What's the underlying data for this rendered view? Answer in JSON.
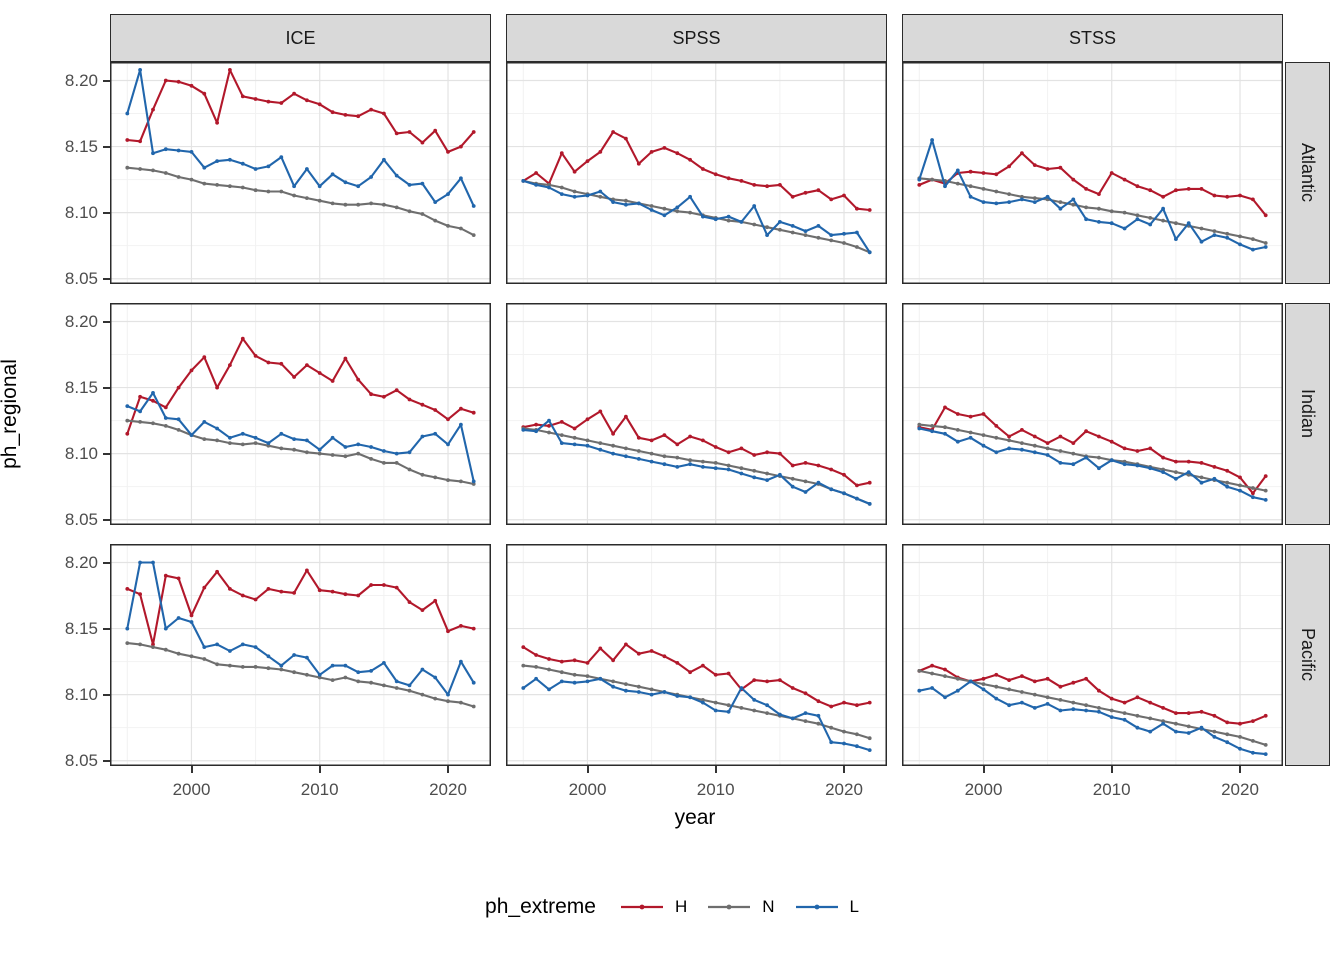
{
  "chart_data": {
    "type": "line",
    "title": "",
    "xlabel": "year",
    "ylabel": "ph_regional",
    "legend_title": "ph_extreme",
    "legend_position": "bottom",
    "grid": {
      "major": "#E3E3E3",
      "minor": "#F2F2F2",
      "on": true
    },
    "panel_border": "#2B2B2B",
    "strip_bg": "#D9D9D9",
    "facet_cols": [
      "ICE",
      "SPSS",
      "STSS"
    ],
    "facet_rows": [
      "Atlantic",
      "Indian",
      "Pacific"
    ],
    "x_ticks": [
      2000,
      2010,
      2020
    ],
    "x_minor": [
      1995,
      2005,
      2015
    ],
    "x_tick_labels": [
      "2000",
      "2010",
      "2020"
    ],
    "y_ticks": [
      8.2,
      8.15,
      8.1,
      8.05
    ],
    "y_tick_labels": [
      "8.20",
      "8.15",
      "8.10",
      "8.05"
    ],
    "y_minor": [
      8.175,
      8.125,
      8.075
    ],
    "x_range": [
      1993.65,
      2023.35
    ],
    "y_range": [
      8.046,
      8.214
    ],
    "years": [
      1995,
      1996,
      1997,
      1998,
      1999,
      2000,
      2001,
      2002,
      2003,
      2004,
      2005,
      2006,
      2007,
      2008,
      2009,
      2010,
      2011,
      2012,
      2013,
      2014,
      2015,
      2016,
      2017,
      2018,
      2019,
      2020,
      2021,
      2022
    ],
    "series": [
      {
        "name": "H",
        "color": "#B2182B"
      },
      {
        "name": "N",
        "color": "#6E6E6E"
      },
      {
        "name": "L",
        "color": "#2166AC"
      }
    ],
    "panels": [
      {
        "col": "ICE",
        "row": "Atlantic",
        "values": {
          "H": [
            8.155,
            8.154,
            8.178,
            8.2,
            8.199,
            8.196,
            8.19,
            8.168,
            8.208,
            8.188,
            8.186,
            8.184,
            8.183,
            8.19,
            8.185,
            8.182,
            8.176,
            8.174,
            8.173,
            8.178,
            8.175,
            8.16,
            8.161,
            8.153,
            8.162,
            8.146,
            8.15,
            8.161
          ],
          "N": [
            8.134,
            8.133,
            8.132,
            8.13,
            8.127,
            8.125,
            8.122,
            8.121,
            8.12,
            8.119,
            8.117,
            8.116,
            8.116,
            8.113,
            8.111,
            8.109,
            8.107,
            8.106,
            8.106,
            8.107,
            8.106,
            8.104,
            8.101,
            8.099,
            8.094,
            8.09,
            8.088,
            8.083
          ],
          "L": [
            8.175,
            8.208,
            8.145,
            8.148,
            8.147,
            8.146,
            8.134,
            8.139,
            8.14,
            8.137,
            8.133,
            8.135,
            8.142,
            8.12,
            8.133,
            8.12,
            8.129,
            8.123,
            8.12,
            8.127,
            8.14,
            8.128,
            8.121,
            8.122,
            8.108,
            8.114,
            8.126,
            8.105
          ]
        }
      },
      {
        "col": "SPSS",
        "row": "Atlantic",
        "values": {
          "H": [
            8.124,
            8.13,
            8.122,
            8.145,
            8.131,
            8.139,
            8.146,
            8.161,
            8.156,
            8.137,
            8.146,
            8.149,
            8.145,
            8.14,
            8.133,
            8.129,
            8.126,
            8.124,
            8.121,
            8.12,
            8.121,
            8.112,
            8.115,
            8.117,
            8.11,
            8.113,
            8.103,
            8.102
          ],
          "N": [
            8.124,
            8.122,
            8.121,
            8.119,
            8.116,
            8.114,
            8.112,
            8.11,
            8.109,
            8.107,
            8.105,
            8.103,
            8.101,
            8.1,
            8.098,
            8.096,
            8.094,
            8.093,
            8.091,
            8.089,
            8.087,
            8.085,
            8.083,
            8.081,
            8.079,
            8.077,
            8.074,
            8.07
          ],
          "L": [
            8.124,
            8.121,
            8.119,
            8.114,
            8.112,
            8.113,
            8.116,
            8.108,
            8.106,
            8.107,
            8.102,
            8.098,
            8.104,
            8.112,
            8.097,
            8.095,
            8.097,
            8.093,
            8.105,
            8.083,
            8.093,
            8.09,
            8.086,
            8.09,
            8.083,
            8.084,
            8.085,
            8.07
          ]
        }
      },
      {
        "col": "STSS",
        "row": "Atlantic",
        "values": {
          "H": [
            8.121,
            8.125,
            8.122,
            8.13,
            8.131,
            8.13,
            8.129,
            8.135,
            8.145,
            8.136,
            8.133,
            8.134,
            8.125,
            8.118,
            8.114,
            8.13,
            8.125,
            8.12,
            8.117,
            8.112,
            8.117,
            8.118,
            8.118,
            8.113,
            8.112,
            8.113,
            8.11,
            8.098
          ],
          "N": [
            8.126,
            8.125,
            8.124,
            8.122,
            8.12,
            8.118,
            8.116,
            8.114,
            8.112,
            8.111,
            8.11,
            8.108,
            8.106,
            8.104,
            8.103,
            8.101,
            8.1,
            8.098,
            8.096,
            8.094,
            8.092,
            8.09,
            8.088,
            8.086,
            8.084,
            8.082,
            8.08,
            8.077
          ],
          "L": [
            8.125,
            8.155,
            8.12,
            8.132,
            8.112,
            8.108,
            8.107,
            8.108,
            8.11,
            8.108,
            8.112,
            8.103,
            8.11,
            8.095,
            8.093,
            8.092,
            8.088,
            8.095,
            8.091,
            8.103,
            8.08,
            8.092,
            8.078,
            8.083,
            8.081,
            8.076,
            8.072,
            8.074
          ]
        }
      },
      {
        "col": "ICE",
        "row": "Indian",
        "values": {
          "H": [
            8.115,
            8.143,
            8.14,
            8.135,
            8.15,
            8.163,
            8.173,
            8.15,
            8.167,
            8.187,
            8.174,
            8.169,
            8.168,
            8.158,
            8.167,
            8.161,
            8.155,
            8.172,
            8.156,
            8.145,
            8.143,
            8.148,
            8.141,
            8.137,
            8.133,
            8.126,
            8.134,
            8.131
          ],
          "N": [
            8.125,
            8.124,
            8.123,
            8.121,
            8.118,
            8.114,
            8.111,
            8.11,
            8.108,
            8.107,
            8.108,
            8.106,
            8.104,
            8.103,
            8.101,
            8.1,
            8.099,
            8.098,
            8.1,
            8.096,
            8.093,
            8.093,
            8.088,
            8.084,
            8.082,
            8.08,
            8.079,
            8.077
          ],
          "L": [
            8.136,
            8.132,
            8.146,
            8.127,
            8.126,
            8.114,
            8.124,
            8.119,
            8.112,
            8.115,
            8.112,
            8.108,
            8.115,
            8.111,
            8.11,
            8.103,
            8.112,
            8.105,
            8.107,
            8.105,
            8.102,
            8.1,
            8.101,
            8.113,
            8.115,
            8.107,
            8.122,
            8.079
          ]
        }
      },
      {
        "col": "SPSS",
        "row": "Indian",
        "values": {
          "H": [
            8.12,
            8.122,
            8.121,
            8.124,
            8.119,
            8.126,
            8.132,
            8.115,
            8.128,
            8.112,
            8.11,
            8.114,
            8.107,
            8.113,
            8.11,
            8.105,
            8.101,
            8.104,
            8.099,
            8.101,
            8.1,
            8.091,
            8.093,
            8.091,
            8.088,
            8.084,
            8.076,
            8.078
          ],
          "N": [
            8.119,
            8.118,
            8.116,
            8.114,
            8.112,
            8.11,
            8.108,
            8.106,
            8.104,
            8.102,
            8.1,
            8.098,
            8.097,
            8.095,
            8.094,
            8.093,
            8.091,
            8.089,
            8.087,
            8.085,
            8.083,
            8.081,
            8.079,
            8.077,
            8.073,
            8.07,
            8.066,
            8.062
          ],
          "L": [
            8.118,
            8.117,
            8.125,
            8.108,
            8.107,
            8.106,
            8.103,
            8.1,
            8.098,
            8.096,
            8.094,
            8.092,
            8.09,
            8.092,
            8.09,
            8.089,
            8.088,
            8.085,
            8.082,
            8.08,
            8.084,
            8.075,
            8.071,
            8.078,
            8.073,
            8.07,
            8.066,
            8.062
          ]
        }
      },
      {
        "col": "STSS",
        "row": "Indian",
        "values": {
          "H": [
            8.12,
            8.118,
            8.135,
            8.13,
            8.128,
            8.13,
            8.121,
            8.113,
            8.118,
            8.113,
            8.108,
            8.113,
            8.108,
            8.117,
            8.113,
            8.109,
            8.104,
            8.102,
            8.104,
            8.097,
            8.094,
            8.094,
            8.093,
            8.09,
            8.087,
            8.082,
            8.07,
            8.083
          ],
          "N": [
            8.122,
            8.121,
            8.12,
            8.118,
            8.116,
            8.114,
            8.112,
            8.11,
            8.108,
            8.106,
            8.104,
            8.102,
            8.1,
            8.098,
            8.097,
            8.095,
            8.094,
            8.092,
            8.09,
            8.088,
            8.086,
            8.084,
            8.082,
            8.08,
            8.078,
            8.076,
            8.074,
            8.072
          ],
          "L": [
            8.119,
            8.117,
            8.115,
            8.109,
            8.112,
            8.106,
            8.101,
            8.104,
            8.103,
            8.101,
            8.099,
            8.093,
            8.092,
            8.097,
            8.089,
            8.095,
            8.092,
            8.091,
            8.089,
            8.086,
            8.081,
            8.086,
            8.078,
            8.081,
            8.075,
            8.072,
            8.067,
            8.065
          ]
        }
      },
      {
        "col": "ICE",
        "row": "Pacific",
        "values": {
          "H": [
            8.18,
            8.176,
            8.138,
            8.19,
            8.188,
            8.16,
            8.181,
            8.193,
            8.18,
            8.175,
            8.172,
            8.18,
            8.178,
            8.177,
            8.194,
            8.179,
            8.178,
            8.176,
            8.175,
            8.183,
            8.183,
            8.181,
            8.17,
            8.164,
            8.171,
            8.148,
            8.152,
            8.15
          ],
          "N": [
            8.139,
            8.138,
            8.136,
            8.134,
            8.131,
            8.129,
            8.127,
            8.123,
            8.122,
            8.121,
            8.121,
            8.12,
            8.119,
            8.117,
            8.115,
            8.113,
            8.111,
            8.113,
            8.11,
            8.109,
            8.107,
            8.105,
            8.103,
            8.1,
            8.097,
            8.095,
            8.094,
            8.091
          ],
          "L": [
            8.15,
            8.2,
            8.2,
            8.15,
            8.158,
            8.155,
            8.136,
            8.138,
            8.133,
            8.138,
            8.136,
            8.129,
            8.122,
            8.13,
            8.128,
            8.115,
            8.122,
            8.122,
            8.117,
            8.118,
            8.124,
            8.11,
            8.107,
            8.119,
            8.113,
            8.1,
            8.125,
            8.109
          ]
        }
      },
      {
        "col": "SPSS",
        "row": "Pacific",
        "values": {
          "H": [
            8.136,
            8.13,
            8.127,
            8.125,
            8.126,
            8.124,
            8.135,
            8.126,
            8.138,
            8.131,
            8.133,
            8.129,
            8.124,
            8.117,
            8.122,
            8.115,
            8.116,
            8.104,
            8.111,
            8.11,
            8.111,
            8.105,
            8.101,
            8.095,
            8.091,
            8.094,
            8.092,
            8.094
          ],
          "N": [
            8.122,
            8.121,
            8.119,
            8.117,
            8.115,
            8.114,
            8.112,
            8.11,
            8.108,
            8.106,
            8.104,
            8.102,
            8.1,
            8.098,
            8.096,
            8.094,
            8.092,
            8.09,
            8.088,
            8.086,
            8.084,
            8.082,
            8.08,
            8.078,
            8.075,
            8.072,
            8.07,
            8.067
          ],
          "L": [
            8.105,
            8.112,
            8.104,
            8.11,
            8.109,
            8.11,
            8.112,
            8.106,
            8.103,
            8.102,
            8.1,
            8.102,
            8.099,
            8.098,
            8.094,
            8.088,
            8.087,
            8.105,
            8.096,
            8.092,
            8.085,
            8.082,
            8.086,
            8.084,
            8.064,
            8.063,
            8.061,
            8.058
          ]
        }
      },
      {
        "col": "STSS",
        "row": "Pacific",
        "values": {
          "H": [
            8.118,
            8.122,
            8.119,
            8.113,
            8.11,
            8.112,
            8.115,
            8.111,
            8.114,
            8.11,
            8.112,
            8.106,
            8.109,
            8.112,
            8.103,
            8.097,
            8.094,
            8.098,
            8.094,
            8.09,
            8.086,
            8.086,
            8.087,
            8.084,
            8.079,
            8.078,
            8.08,
            8.084
          ],
          "N": [
            8.118,
            8.116,
            8.114,
            8.112,
            8.11,
            8.108,
            8.106,
            8.104,
            8.102,
            8.1,
            8.098,
            8.096,
            8.094,
            8.092,
            8.09,
            8.088,
            8.086,
            8.084,
            8.082,
            8.08,
            8.078,
            8.076,
            8.074,
            8.072,
            8.07,
            8.068,
            8.065,
            8.062
          ],
          "L": [
            8.103,
            8.105,
            8.098,
            8.103,
            8.11,
            8.104,
            8.097,
            8.092,
            8.094,
            8.09,
            8.093,
            8.088,
            8.089,
            8.088,
            8.087,
            8.083,
            8.081,
            8.075,
            8.072,
            8.078,
            8.072,
            8.071,
            8.075,
            8.068,
            8.064,
            8.059,
            8.056,
            8.055
          ]
        }
      }
    ]
  }
}
